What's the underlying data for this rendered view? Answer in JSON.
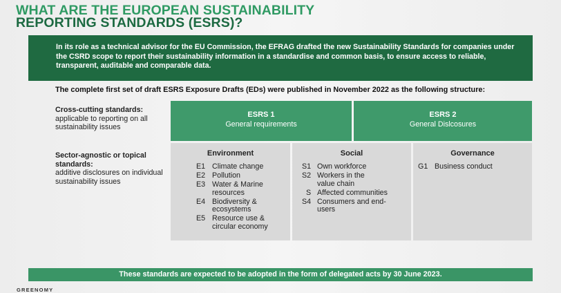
{
  "title": {
    "line1": "WHAT ARE THE EUROPEAN SUSTAINABILITY",
    "line2": "REPORTING STANDARDS (ESRS)?"
  },
  "intro": "In its role as a technical advisor for the EU Commission, the EFRAG drafted the new Sustainability Standards for companies under the CSRD scope to report their sustainability information in a standardise and common basis, to ensure access to reliable, transparent, auditable and comparable data.",
  "lead": "The complete first set of draft ESRS Exposure Drafts (EDs) were published in November 2022 as the following structure:",
  "rows": {
    "cross": {
      "title": "Cross-cutting standards:",
      "desc": "applicable to reporting on all sustainability issues"
    },
    "sector": {
      "title": "Sector-agnostic or topical standards:",
      "desc": "additive disclosures on individual sustainability issues"
    }
  },
  "esrs": [
    {
      "code": "ESRS 1",
      "name": "General requirements"
    },
    {
      "code": "ESRS 2",
      "name": "General Dislcosures"
    }
  ],
  "topics": {
    "environment": {
      "heading": "Environment",
      "items": [
        {
          "code": "E1",
          "text": "Climate change"
        },
        {
          "code": "E2",
          "text": "Pollution"
        },
        {
          "code": "E3",
          "text": "Water & Marine resources"
        },
        {
          "code": "E4",
          "text": "Biodiversity & ecosystems"
        },
        {
          "code": "E5",
          "text": "Resource use & circular economy"
        }
      ]
    },
    "social": {
      "heading": "Social",
      "items": [
        {
          "code": "S1",
          "text": "Own workforce"
        },
        {
          "code": "S2",
          "text": "Workers in the value chain"
        },
        {
          "code": "S",
          "text": "Affected communities"
        },
        {
          "code": "S4",
          "text": "Consumers and end-users"
        }
      ]
    },
    "governance": {
      "heading": "Governance",
      "items": [
        {
          "code": "G1",
          "text": "Business conduct"
        }
      ]
    }
  },
  "footer": "These standards are expected to be adopted in the form of delegated acts by 30 June 2023.",
  "brand": "GREENOMY",
  "colors": {
    "title_light": "#2f9a63",
    "title_dark": "#1d6a42",
    "intro_bg": "#1f6a41",
    "esrs_bg": "#3f9a6b",
    "topic_bg": "#d9d9d9",
    "footer_bg": "#3a9566"
  }
}
